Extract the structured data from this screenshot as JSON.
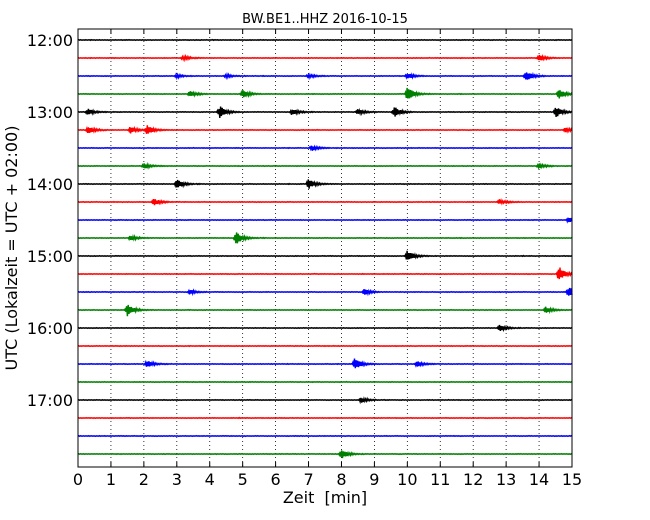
{
  "chart_data": {
    "type": "line",
    "title": "BW.BE1..HHZ 2016-10-15",
    "xlabel": "Zeit  [min]",
    "ylabel": "UTC (Lokalzeit = UTC + 02:00)",
    "xlim": [
      0,
      15
    ],
    "x_ticks": [
      0,
      1,
      2,
      3,
      4,
      5,
      6,
      7,
      8,
      9,
      10,
      11,
      12,
      13,
      14,
      15
    ],
    "y_tick_labels": [
      "12:00",
      "13:00",
      "14:00",
      "15:00",
      "16:00",
      "17:00"
    ],
    "grid": "vertical dotted",
    "trace_interval_min": 15,
    "color_cycle": [
      "#000000",
      "#ff0000",
      "#0000ff",
      "#008000"
    ],
    "traces": [
      {
        "start": "12:00",
        "color": "#000000",
        "events": []
      },
      {
        "start": "12:15",
        "color": "#ff0000",
        "events": [
          [
            3.2,
            0.35
          ],
          [
            14.0,
            0.5
          ]
        ]
      },
      {
        "start": "12:30",
        "color": "#0000ff",
        "events": [
          [
            3.0,
            0.25
          ],
          [
            4.5,
            0.3
          ],
          [
            7.0,
            0.3
          ],
          [
            10.0,
            0.45
          ],
          [
            13.6,
            0.8
          ]
        ]
      },
      {
        "start": "12:45",
        "color": "#008000",
        "events": [
          [
            3.4,
            0.5
          ],
          [
            5.0,
            0.6
          ],
          [
            10.0,
            1.1
          ],
          [
            14.6,
            0.8
          ]
        ]
      },
      {
        "start": "13:00",
        "color": "#000000",
        "events": [
          [
            0.3,
            0.5
          ],
          [
            4.3,
            1.0
          ],
          [
            6.5,
            0.55
          ],
          [
            8.5,
            0.45
          ],
          [
            9.6,
            0.9
          ],
          [
            14.5,
            0.9
          ]
        ]
      },
      {
        "start": "13:15",
        "color": "#ff0000",
        "events": [
          [
            0.3,
            0.6
          ],
          [
            1.6,
            0.6
          ],
          [
            2.1,
            0.7
          ],
          [
            14.8,
            0.4
          ]
        ]
      },
      {
        "start": "13:30",
        "color": "#0000ff",
        "events": [
          [
            7.1,
            0.4
          ]
        ]
      },
      {
        "start": "13:45",
        "color": "#008000",
        "events": [
          [
            2.0,
            0.45
          ],
          [
            14.0,
            0.4
          ]
        ]
      },
      {
        "start": "14:00",
        "color": "#000000",
        "events": [
          [
            3.0,
            0.8
          ],
          [
            7.0,
            0.8
          ]
        ]
      },
      {
        "start": "14:15",
        "color": "#ff0000",
        "events": [
          [
            2.3,
            0.55
          ],
          [
            12.8,
            0.4
          ]
        ]
      },
      {
        "start": "14:30",
        "color": "#0000ff",
        "events": [
          [
            14.9,
            0.5
          ]
        ]
      },
      {
        "start": "14:45",
        "color": "#008000",
        "events": [
          [
            1.6,
            0.4
          ],
          [
            4.8,
            1.1
          ]
        ]
      },
      {
        "start": "15:00",
        "color": "#000000",
        "events": [
          [
            10.0,
            0.9
          ]
        ]
      },
      {
        "start": "15:15",
        "color": "#ff0000",
        "events": [
          [
            14.6,
            1.2
          ]
        ]
      },
      {
        "start": "15:30",
        "color": "#0000ff",
        "events": [
          [
            3.4,
            0.4
          ],
          [
            8.7,
            0.5
          ],
          [
            14.9,
            0.9
          ]
        ]
      },
      {
        "start": "15:45",
        "color": "#008000",
        "events": [
          [
            1.5,
            1.0
          ],
          [
            14.2,
            0.5
          ]
        ]
      },
      {
        "start": "16:00",
        "color": "#000000",
        "events": [
          [
            12.8,
            0.45
          ]
        ]
      },
      {
        "start": "16:15",
        "color": "#ff0000",
        "events": []
      },
      {
        "start": "16:30",
        "color": "#0000ff",
        "events": [
          [
            2.1,
            0.55
          ],
          [
            8.4,
            1.0
          ],
          [
            10.3,
            0.45
          ]
        ]
      },
      {
        "start": "16:45",
        "color": "#008000",
        "events": []
      },
      {
        "start": "17:00",
        "color": "#000000",
        "events": [
          [
            8.6,
            0.45
          ]
        ]
      },
      {
        "start": "17:15",
        "color": "#ff0000",
        "events": []
      },
      {
        "start": "17:30",
        "color": "#0000ff",
        "events": []
      },
      {
        "start": "17:45",
        "color": "#008000",
        "events": [
          [
            8.0,
            0.8
          ]
        ]
      }
    ]
  }
}
